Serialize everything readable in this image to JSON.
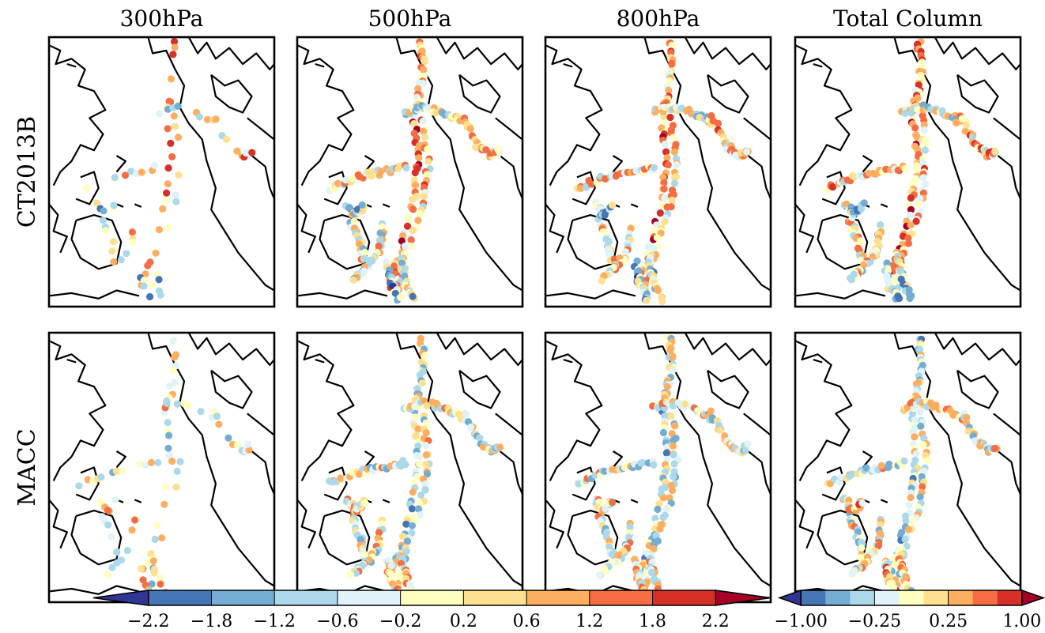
{
  "chart_data": {
    "type": "scatter",
    "panel_type": "map-scatter",
    "columns": [
      "300hPa",
      "500hPa",
      "800hPa",
      "Total Column"
    ],
    "rows": [
      "CT2013B",
      "MACC"
    ],
    "colormap": "RdYlBu_r",
    "colors": [
      "#313695",
      "#4575b4",
      "#74add1",
      "#abd9e9",
      "#e0f3f8",
      "#ffffbf",
      "#fee090",
      "#fdae61",
      "#f46d43",
      "#d73027",
      "#a50026"
    ],
    "colorbar_pressure": {
      "boundaries": [
        -2.6,
        -2.2,
        -1.8,
        -1.2,
        -0.6,
        -0.2,
        0.2,
        0.6,
        1.2,
        1.8,
        2.2,
        2.6
      ],
      "tick_values": [
        -2.2,
        -1.8,
        -1.2,
        -0.6,
        -0.2,
        0.2,
        0.6,
        1.2,
        1.8,
        2.2
      ],
      "tick_labels": [
        "−2.2",
        "−1.8",
        "−1.2",
        "−0.6",
        "−0.2",
        "0.2",
        "0.6",
        "1.2",
        "1.8",
        "2.2"
      ],
      "extend": "both"
    },
    "colorbar_column": {
      "boundaries": [
        -1.3,
        -1.0,
        -0.75,
        -0.5,
        -0.25,
        -0.1,
        0.1,
        0.25,
        0.5,
        0.75,
        1.0,
        1.3
      ],
      "tick_values": [
        -1.0,
        -0.25,
        0.25,
        1.0
      ],
      "tick_labels": [
        "−1.00",
        "−0.25",
        "0.25",
        "1.00"
      ],
      "extend": "both"
    },
    "grid": false
  }
}
